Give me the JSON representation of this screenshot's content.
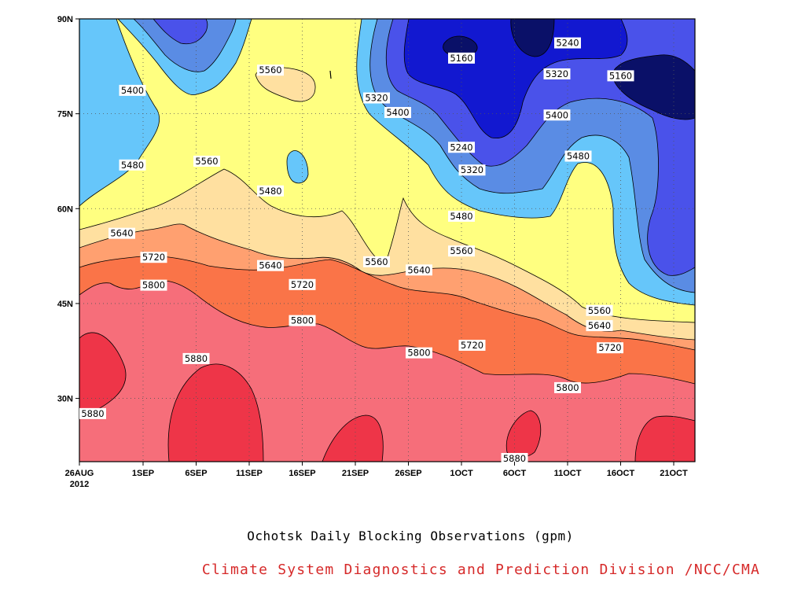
{
  "chart_data": {
    "type": "contour",
    "title": "Ochotsk Daily Blocking Observations (gpm)",
    "credit": "Climate System Diagnostics and Prediction Division /NCC/CMA",
    "xlabel": "",
    "ylabel": "",
    "x_range": [
      "2012-08-26",
      "2012-10-23"
    ],
    "y_range": [
      20,
      90
    ],
    "grid": true,
    "x_ticks": [
      {
        "date": "2012-08-26",
        "label": "26AUG",
        "sub": "2012"
      },
      {
        "date": "2012-09-01",
        "label": "1SEP"
      },
      {
        "date": "2012-09-06",
        "label": "6SEP"
      },
      {
        "date": "2012-09-11",
        "label": "11SEP"
      },
      {
        "date": "2012-09-16",
        "label": "16SEP"
      },
      {
        "date": "2012-09-21",
        "label": "21SEP"
      },
      {
        "date": "2012-09-26",
        "label": "26SEP"
      },
      {
        "date": "2012-10-01",
        "label": "1OCT"
      },
      {
        "date": "2012-10-06",
        "label": "6OCT"
      },
      {
        "date": "2012-10-11",
        "label": "11OCT"
      },
      {
        "date": "2012-10-16",
        "label": "16OCT"
      },
      {
        "date": "2012-10-21",
        "label": "21OCT"
      }
    ],
    "y_ticks": [
      {
        "value": 30,
        "label": "30N"
      },
      {
        "value": 45,
        "label": "45N"
      },
      {
        "value": 60,
        "label": "60N"
      },
      {
        "value": 75,
        "label": "75N"
      },
      {
        "value": 90,
        "label": "90N"
      }
    ],
    "contour_levels": [
      5160,
      5240,
      5320,
      5400,
      5480,
      5560,
      5640,
      5720,
      5800,
      5880
    ],
    "band_colors": {
      "lt5160": "#0a1068",
      "5160": "#1218d0",
      "5240": "#4a52ea",
      "5320": "#5a8ce4",
      "5400": "#66c6fa",
      "5480": "#ffff80",
      "5560": "#ffe0a0",
      "5640": "#ffa070",
      "5720": "#fa7448",
      "5800": "#f66e7a",
      "5880": "#ee3548"
    },
    "contour_labels": [
      {
        "text": "5160",
        "date": "2012-10-01",
        "lat": 83.8
      },
      {
        "text": "5240",
        "date": "2012-10-11",
        "lat": 86.2
      },
      {
        "text": "5160",
        "date": "2012-10-16",
        "lat": 81.0
      },
      {
        "text": "5320",
        "date": "2012-10-10",
        "lat": 81.3
      },
      {
        "text": "5320",
        "date": "2012-09-23",
        "lat": 77.5
      },
      {
        "text": "5400",
        "date": "2012-09-25",
        "lat": 75.2
      },
      {
        "text": "5400",
        "date": "2012-10-10",
        "lat": 74.8
      },
      {
        "text": "5560",
        "date": "2012-09-13",
        "lat": 81.9
      },
      {
        "text": "5400",
        "date": "2012-08-31",
        "lat": 78.7
      },
      {
        "text": "5240",
        "date": "2012-10-01",
        "lat": 69.7
      },
      {
        "text": "5320",
        "date": "2012-10-02",
        "lat": 66.1
      },
      {
        "text": "5480",
        "date": "2012-10-12",
        "lat": 68.3
      },
      {
        "text": "5480",
        "date": "2012-08-31",
        "lat": 66.9
      },
      {
        "text": "5560",
        "date": "2012-09-07",
        "lat": 67.5
      },
      {
        "text": "5480",
        "date": "2012-09-13",
        "lat": 62.8
      },
      {
        "text": "5480",
        "date": "2012-10-01",
        "lat": 58.8
      },
      {
        "text": "5640",
        "date": "2012-08-30",
        "lat": 56.1
      },
      {
        "text": "5560",
        "date": "2012-10-01",
        "lat": 53.3
      },
      {
        "text": "5720",
        "date": "2012-09-02",
        "lat": 52.3
      },
      {
        "text": "5640",
        "date": "2012-09-13",
        "lat": 51.0
      },
      {
        "text": "5560",
        "date": "2012-09-23",
        "lat": 51.6
      },
      {
        "text": "5640",
        "date": "2012-09-27",
        "lat": 50.3
      },
      {
        "text": "5800",
        "date": "2012-09-02",
        "lat": 47.9
      },
      {
        "text": "5720",
        "date": "2012-09-16",
        "lat": 48.0
      },
      {
        "text": "5560",
        "date": "2012-10-14",
        "lat": 43.9
      },
      {
        "text": "5800",
        "date": "2012-09-16",
        "lat": 42.3
      },
      {
        "text": "5640",
        "date": "2012-10-14",
        "lat": 41.5
      },
      {
        "text": "5720",
        "date": "2012-10-02",
        "lat": 38.4
      },
      {
        "text": "5720",
        "date": "2012-10-15",
        "lat": 38.0
      },
      {
        "text": "5800",
        "date": "2012-09-27",
        "lat": 37.2
      },
      {
        "text": "5880",
        "date": "2012-09-06",
        "lat": 36.3
      },
      {
        "text": "5800",
        "date": "2012-10-11",
        "lat": 31.7
      },
      {
        "text": "5880",
        "date": "2012-08-27",
        "lat": 27.6
      },
      {
        "text": "5880",
        "date": "2012-10-06",
        "lat": 20.5
      }
    ]
  }
}
